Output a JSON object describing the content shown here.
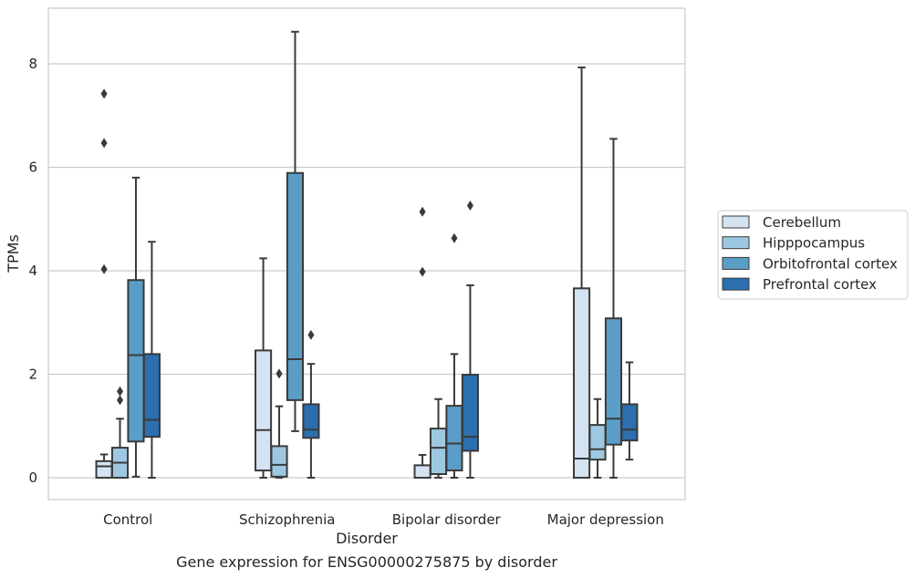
{
  "chart_data": {
    "type": "box",
    "title": "",
    "caption": "Gene expression for ENSG00000275875 by disorder",
    "xlabel": "Disorder",
    "ylabel": "TPMs",
    "ylim": [
      -0.4,
      9.1
    ],
    "yticks": [
      0,
      2,
      4,
      6,
      8
    ],
    "grid": "horizontal",
    "legend_position": "right, outside",
    "categories": [
      "Control",
      "Schizophrenia",
      "Bipolar disorder",
      "Major depression"
    ],
    "series": [
      {
        "name": "Cerebellum",
        "color": "#d4e3f2",
        "boxes": [
          {
            "whislo": 0.0,
            "q1": 0.0,
            "med": 0.22,
            "q3": 0.32,
            "whishi": 0.45,
            "fliers": [
              4.03,
              6.47,
              7.42
            ]
          },
          {
            "whislo": 0.0,
            "q1": 0.14,
            "med": 0.92,
            "q3": 2.46,
            "whishi": 4.24,
            "fliers": []
          },
          {
            "whislo": 0.0,
            "q1": 0.0,
            "med": 0.0,
            "q3": 0.24,
            "whishi": 0.44,
            "fliers": [
              3.98,
              5.14
            ]
          },
          {
            "whislo": 0.0,
            "q1": 0.0,
            "med": 0.37,
            "q3": 3.66,
            "whishi": 7.93,
            "fliers": []
          }
        ]
      },
      {
        "name": "Hipppocampus",
        "color": "#9ec8e1",
        "boxes": [
          {
            "whislo": 0.0,
            "q1": 0.0,
            "med": 0.29,
            "q3": 0.58,
            "whishi": 1.14,
            "fliers": [
              1.5,
              1.67
            ]
          },
          {
            "whislo": 0.0,
            "q1": 0.02,
            "med": 0.25,
            "q3": 0.61,
            "whishi": 1.38,
            "fliers": [
              2.01
            ]
          },
          {
            "whislo": 0.0,
            "q1": 0.07,
            "med": 0.58,
            "q3": 0.95,
            "whishi": 1.52,
            "fliers": []
          },
          {
            "whislo": 0.0,
            "q1": 0.35,
            "med": 0.55,
            "q3": 1.02,
            "whishi": 1.52,
            "fliers": []
          }
        ]
      },
      {
        "name": "Orbitofrontal cortex",
        "color": "#5a9ec8",
        "boxes": [
          {
            "whislo": 0.02,
            "q1": 0.7,
            "med": 2.37,
            "q3": 3.82,
            "whishi": 5.8,
            "fliers": []
          },
          {
            "whislo": 0.9,
            "q1": 1.5,
            "med": 2.29,
            "q3": 5.89,
            "whishi": 8.62,
            "fliers": []
          },
          {
            "whislo": 0.0,
            "q1": 0.14,
            "med": 0.66,
            "q3": 1.39,
            "whishi": 2.39,
            "fliers": [
              4.63
            ]
          },
          {
            "whislo": 0.0,
            "q1": 0.64,
            "med": 1.14,
            "q3": 3.08,
            "whishi": 6.55,
            "fliers": []
          }
        ]
      },
      {
        "name": "Prefrontal cortex",
        "color": "#2b6fae",
        "boxes": [
          {
            "whislo": 0.0,
            "q1": 0.79,
            "med": 1.12,
            "q3": 2.39,
            "whishi": 4.56,
            "fliers": []
          },
          {
            "whislo": 0.0,
            "q1": 0.77,
            "med": 0.93,
            "q3": 1.42,
            "whishi": 2.2,
            "fliers": [
              2.76
            ]
          },
          {
            "whislo": 0.0,
            "q1": 0.52,
            "med": 0.79,
            "q3": 1.99,
            "whishi": 3.72,
            "fliers": [
              5.26
            ]
          },
          {
            "whislo": 0.35,
            "q1": 0.72,
            "med": 0.93,
            "q3": 1.42,
            "whishi": 2.23,
            "fliers": []
          }
        ]
      }
    ]
  }
}
